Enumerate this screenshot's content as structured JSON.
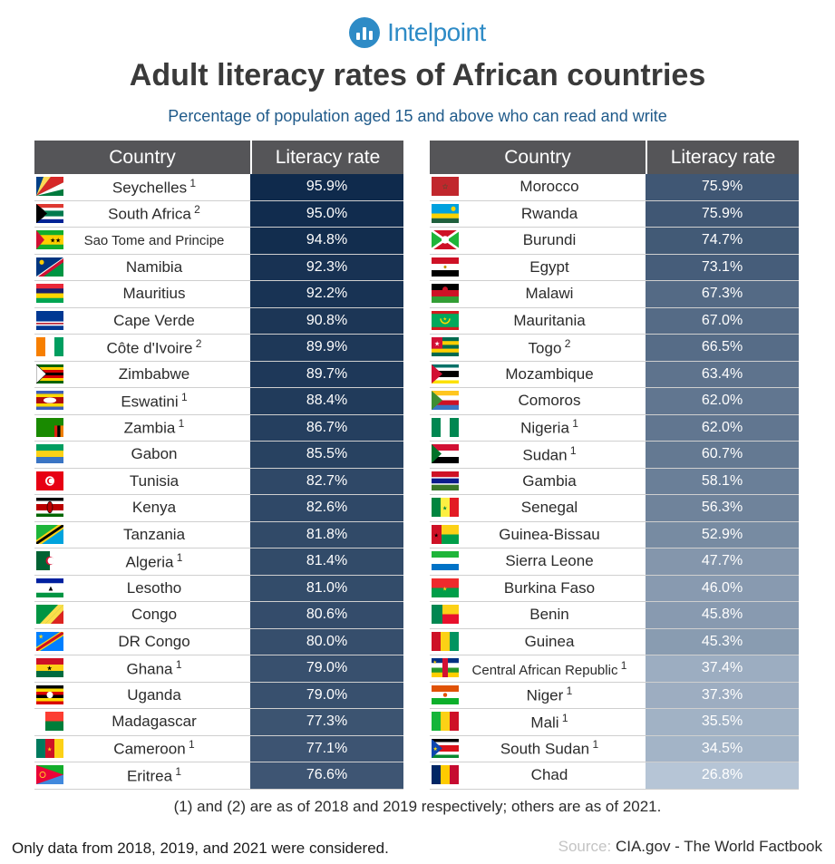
{
  "brand": {
    "name": "Intelpoint"
  },
  "chart_data": {
    "type": "table",
    "title": "Adult literacy rates of African countries",
    "subtitle": "Percentage of population aged 15 and above who can read and write",
    "columns": [
      "Country",
      "Literacy rate"
    ],
    "tables": [
      {
        "rows": [
          {
            "country": "Seychelles",
            "note": "1",
            "rate": 95.9,
            "label": "95.9%",
            "flag": "seychelles-flag"
          },
          {
            "country": "South Africa",
            "note": "2",
            "rate": 95.0,
            "label": "95.0%",
            "flag": "south-africa-flag"
          },
          {
            "country": "Sao Tome and Principe",
            "note": "",
            "rate": 94.8,
            "label": "94.8%",
            "flag": "sao-tome-flag"
          },
          {
            "country": "Namibia",
            "note": "",
            "rate": 92.3,
            "label": "92.3%",
            "flag": "namibia-flag"
          },
          {
            "country": "Mauritius",
            "note": "",
            "rate": 92.2,
            "label": "92.2%",
            "flag": "mauritius-flag"
          },
          {
            "country": "Cape Verde",
            "note": "",
            "rate": 90.8,
            "label": "90.8%",
            "flag": "cape-verde-flag"
          },
          {
            "country": "Côte d'Ivoire",
            "note": "2",
            "rate": 89.9,
            "label": "89.9%",
            "flag": "cote-divoire-flag"
          },
          {
            "country": "Zimbabwe",
            "note": "",
            "rate": 89.7,
            "label": "89.7%",
            "flag": "zimbabwe-flag"
          },
          {
            "country": "Eswatini",
            "note": "1",
            "rate": 88.4,
            "label": "88.4%",
            "flag": "eswatini-flag"
          },
          {
            "country": "Zambia",
            "note": "1",
            "rate": 86.7,
            "label": "86.7%",
            "flag": "zambia-flag"
          },
          {
            "country": "Gabon",
            "note": "",
            "rate": 85.5,
            "label": "85.5%",
            "flag": "gabon-flag"
          },
          {
            "country": "Tunisia",
            "note": "",
            "rate": 82.7,
            "label": "82.7%",
            "flag": "tunisia-flag"
          },
          {
            "country": "Kenya",
            "note": "",
            "rate": 82.6,
            "label": "82.6%",
            "flag": "kenya-flag"
          },
          {
            "country": "Tanzania",
            "note": "",
            "rate": 81.8,
            "label": "81.8%",
            "flag": "tanzania-flag"
          },
          {
            "country": "Algeria",
            "note": "1",
            "rate": 81.4,
            "label": "81.4%",
            "flag": "algeria-flag"
          },
          {
            "country": "Lesotho",
            "note": "",
            "rate": 81.0,
            "label": "81.0%",
            "flag": "lesotho-flag"
          },
          {
            "country": "Congo",
            "note": "",
            "rate": 80.6,
            "label": "80.6%",
            "flag": "congo-flag"
          },
          {
            "country": "DR Congo",
            "note": "",
            "rate": 80.0,
            "label": "80.0%",
            "flag": "dr-congo-flag"
          },
          {
            "country": "Ghana",
            "note": "1",
            "rate": 79.0,
            "label": "79.0%",
            "flag": "ghana-flag"
          },
          {
            "country": "Uganda",
            "note": "",
            "rate": 79.0,
            "label": "79.0%",
            "flag": "uganda-flag"
          },
          {
            "country": "Madagascar",
            "note": "",
            "rate": 77.3,
            "label": "77.3%",
            "flag": "madagascar-flag"
          },
          {
            "country": "Cameroon",
            "note": "1",
            "rate": 77.1,
            "label": "77.1%",
            "flag": "cameroon-flag"
          },
          {
            "country": "Eritrea",
            "note": "1",
            "rate": 76.6,
            "label": "76.6%",
            "flag": "eritrea-flag"
          }
        ]
      },
      {
        "rows": [
          {
            "country": "Morocco",
            "note": "",
            "rate": 75.9,
            "label": "75.9%",
            "flag": "morocco-flag"
          },
          {
            "country": "Rwanda",
            "note": "",
            "rate": 75.9,
            "label": "75.9%",
            "flag": "rwanda-flag"
          },
          {
            "country": "Burundi",
            "note": "",
            "rate": 74.7,
            "label": "74.7%",
            "flag": "burundi-flag"
          },
          {
            "country": "Egypt",
            "note": "",
            "rate": 73.1,
            "label": "73.1%",
            "flag": "egypt-flag"
          },
          {
            "country": "Malawi",
            "note": "",
            "rate": 67.3,
            "label": "67.3%",
            "flag": "malawi-flag"
          },
          {
            "country": "Mauritania",
            "note": "",
            "rate": 67.0,
            "label": "67.0%",
            "flag": "mauritania-flag"
          },
          {
            "country": "Togo",
            "note": "2",
            "rate": 66.5,
            "label": "66.5%",
            "flag": "togo-flag"
          },
          {
            "country": "Mozambique",
            "note": "",
            "rate": 63.4,
            "label": "63.4%",
            "flag": "mozambique-flag"
          },
          {
            "country": "Comoros",
            "note": "",
            "rate": 62.0,
            "label": "62.0%",
            "flag": "comoros-flag"
          },
          {
            "country": "Nigeria",
            "note": "1",
            "rate": 62.0,
            "label": "62.0%",
            "flag": "nigeria-flag"
          },
          {
            "country": "Sudan",
            "note": "1",
            "rate": 60.7,
            "label": "60.7%",
            "flag": "sudan-flag"
          },
          {
            "country": "Gambia",
            "note": "",
            "rate": 58.1,
            "label": "58.1%",
            "flag": "gambia-flag"
          },
          {
            "country": "Senegal",
            "note": "",
            "rate": 56.3,
            "label": "56.3%",
            "flag": "senegal-flag"
          },
          {
            "country": "Guinea-Bissau",
            "note": "",
            "rate": 52.9,
            "label": "52.9%",
            "flag": "guinea-bissau-flag"
          },
          {
            "country": "Sierra Leone",
            "note": "",
            "rate": 47.7,
            "label": "47.7%",
            "flag": "sierra-leone-flag"
          },
          {
            "country": "Burkina Faso",
            "note": "",
            "rate": 46.0,
            "label": "46.0%",
            "flag": "burkina-faso-flag"
          },
          {
            "country": "Benin",
            "note": "",
            "rate": 45.8,
            "label": "45.8%",
            "flag": "benin-flag"
          },
          {
            "country": "Guinea",
            "note": "",
            "rate": 45.3,
            "label": "45.3%",
            "flag": "guinea-flag"
          },
          {
            "country": "Central African Republic",
            "note": "1",
            "rate": 37.4,
            "label": "37.4%",
            "flag": "car-flag"
          },
          {
            "country": "Niger",
            "note": "1",
            "rate": 37.3,
            "label": "37.3%",
            "flag": "niger-flag"
          },
          {
            "country": "Mali",
            "note": "1",
            "rate": 35.5,
            "label": "35.5%",
            "flag": "mali-flag"
          },
          {
            "country": "South Sudan",
            "note": "1",
            "rate": 34.5,
            "label": "34.5%",
            "flag": "south-sudan-flag"
          },
          {
            "country": "Chad",
            "note": "",
            "rate": 26.8,
            "label": "26.8%",
            "flag": "chad-flag"
          }
        ]
      }
    ],
    "color_scale": {
      "high": "#0f2a4c",
      "low": "#b6c5d6"
    }
  },
  "footnote": "(1) and (2) are as of 2018 and 2019 respectively; others are as of 2021.",
  "note": "Only data from 2018, 2019, and 2021 were considered.",
  "source": {
    "label": "Source:",
    "text": "CIA.gov - The World Factbook"
  }
}
